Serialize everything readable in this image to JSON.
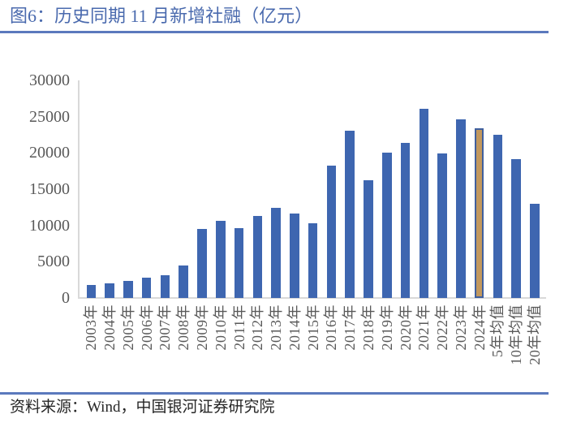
{
  "header": {
    "figure_label": "图6：历史同期 11 月新增社融（亿元）"
  },
  "footer": {
    "source": "资料来源：Wind，中国银河证券研究院"
  },
  "colors": {
    "title_blue": "#4a6aae",
    "rule_blue": "#5b79bd",
    "bar_blue": "#3e66b0",
    "highlight_bar_fill": "#c2985e",
    "highlight_bar_border": "#3f5f9e",
    "axis_gray": "#d9d9d9",
    "tick_label_gray": "#595959",
    "footer_text": "#262626"
  },
  "chart_data": {
    "type": "bar",
    "title": "历史同期11月新增社融（亿元）",
    "categories": [
      "2003年",
      "2004年",
      "2005年",
      "2006年",
      "2007年",
      "2008年",
      "2009年",
      "2010年",
      "2011年",
      "2012年",
      "2013年",
      "2014年",
      "2015年",
      "2016年",
      "2017年",
      "2018年",
      "2019年",
      "2020年",
      "2021年",
      "2022年",
      "2023年",
      "2024年",
      "5年均值",
      "10年均值",
      "20年均值"
    ],
    "values": [
      1800,
      2000,
      2400,
      2800,
      3100,
      4500,
      9500,
      10600,
      9600,
      11300,
      12400,
      11600,
      10300,
      18300,
      23100,
      16200,
      20000,
      21400,
      26100,
      19900,
      24600,
      23400,
      22500,
      19100,
      13000
    ],
    "highlight_index": 21,
    "highlight_category": "2024年",
    "xlabel": "",
    "ylabel": "",
    "ylim": [
      0,
      30000
    ],
    "yticks": [
      0,
      5000,
      10000,
      15000,
      20000,
      25000,
      30000
    ],
    "grid": false,
    "legend": null
  }
}
